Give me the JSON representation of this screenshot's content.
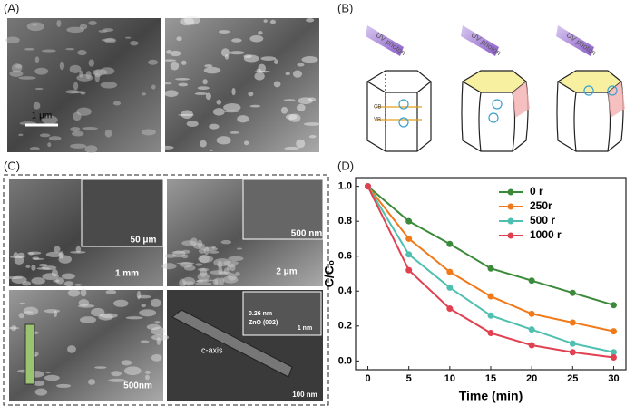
{
  "panels": {
    "a": {
      "label": "(A)",
      "scale_bar": "1 μm"
    },
    "b": {
      "label": "(B)",
      "photon": [
        "UV photon",
        "UV photon",
        "UV photon"
      ],
      "band": [
        "CB",
        "VB"
      ]
    },
    "c": {
      "label": "(C)",
      "scale_bars": [
        "50 μm",
        "1 mm",
        "500 nm",
        "2 μm",
        "500nm",
        "100 nm",
        "1 nm"
      ],
      "lattice": "0.26 nm",
      "plane": "ZnO (002)",
      "axis": "c-axis"
    },
    "d": {
      "label": "(D)"
    }
  },
  "chart_data": {
    "type": "line",
    "xlabel": "Time (min)",
    "ylabel": "C/C₀",
    "x": [
      0,
      5,
      10,
      15,
      20,
      25,
      30
    ],
    "series": [
      {
        "name": "0 r",
        "color": "#3a8a3a",
        "values": [
          1.0,
          0.8,
          0.67,
          0.53,
          0.46,
          0.39,
          0.32
        ]
      },
      {
        "name": "250r",
        "color": "#f07a1a",
        "values": [
          1.0,
          0.7,
          0.51,
          0.37,
          0.27,
          0.22,
          0.17
        ]
      },
      {
        "name": "500 r",
        "color": "#4fc0b0",
        "values": [
          1.0,
          0.61,
          0.42,
          0.26,
          0.18,
          0.1,
          0.05
        ]
      },
      {
        "name": "1000 r",
        "color": "#e04050",
        "values": [
          1.0,
          0.52,
          0.3,
          0.16,
          0.09,
          0.05,
          0.02
        ]
      }
    ],
    "xlim": [
      -1.5,
      31.5
    ],
    "xticks": [
      0,
      5,
      10,
      15,
      20,
      25,
      30
    ],
    "ylim": [
      -0.05,
      1.05
    ],
    "yticks": [
      {
        "value": 0,
        "label": "0.0"
      },
      0.2,
      0.4,
      0.6,
      0.8,
      {
        "value": 1,
        "label": "1.0"
      }
    ],
    "legend": "upper right"
  }
}
